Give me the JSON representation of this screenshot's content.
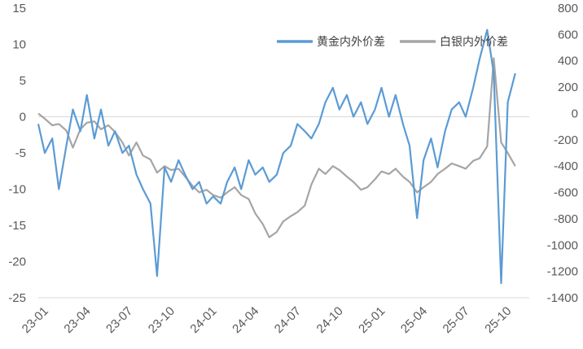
{
  "chart_data": {
    "type": "line",
    "title": "",
    "xlabel": "",
    "ylabel": "",
    "y2label": "",
    "x_ticks": [
      "23-01",
      "23-04",
      "23-07",
      "23-10",
      "24-01",
      "24-04",
      "24-07",
      "24-10",
      "25-01",
      "25-04",
      "25-07",
      "25-10"
    ],
    "ylim": [
      -25,
      15
    ],
    "y_ticks": [
      15,
      10,
      5,
      0,
      -5,
      -10,
      -15,
      -20,
      -25
    ],
    "y2lim": [
      -1400,
      800
    ],
    "y2_ticks": [
      800,
      600,
      400,
      200,
      0,
      -200,
      -400,
      -600,
      -800,
      -1000,
      -1200,
      -1400
    ],
    "legend_position": "top-right",
    "grid": false,
    "zero_line": true,
    "series": [
      {
        "name": "黄金内外价差",
        "axis": "left",
        "color": "#5B9BD5",
        "points": [
          [
            "23-01",
            -1
          ],
          [
            "23-01-15",
            -5
          ],
          [
            "23-02",
            -3
          ],
          [
            "23-02-15",
            -10
          ],
          [
            "23-03",
            -4
          ],
          [
            "23-03-15",
            1
          ],
          [
            "23-04",
            -2
          ],
          [
            "23-04-15",
            3
          ],
          [
            "23-05",
            -3
          ],
          [
            "23-05-15",
            1
          ],
          [
            "23-06",
            -4
          ],
          [
            "23-06-15",
            -2
          ],
          [
            "23-07",
            -5
          ],
          [
            "23-07-15",
            -4
          ],
          [
            "23-08",
            -8
          ],
          [
            "23-08-15",
            -10
          ],
          [
            "23-09",
            -12
          ],
          [
            "23-09-15",
            -22
          ],
          [
            "23-10",
            -7
          ],
          [
            "23-10-15",
            -9
          ],
          [
            "23-11",
            -6
          ],
          [
            "23-11-15",
            -8
          ],
          [
            "23-12",
            -10
          ],
          [
            "23-12-15",
            -9
          ],
          [
            "24-01",
            -12
          ],
          [
            "24-01-15",
            -11
          ],
          [
            "24-02",
            -12
          ],
          [
            "24-02-15",
            -9
          ],
          [
            "24-03",
            -7
          ],
          [
            "24-03-15",
            -10
          ],
          [
            "24-04",
            -6
          ],
          [
            "24-04-15",
            -8
          ],
          [
            "24-05",
            -7
          ],
          [
            "24-05-15",
            -9
          ],
          [
            "24-06",
            -8
          ],
          [
            "24-06-15",
            -5
          ],
          [
            "24-07",
            -4
          ],
          [
            "24-07-15",
            -1
          ],
          [
            "24-08",
            -2
          ],
          [
            "24-08-15",
            -3
          ],
          [
            "24-09",
            -1
          ],
          [
            "24-09-15",
            2
          ],
          [
            "24-10",
            4
          ],
          [
            "24-10-15",
            1
          ],
          [
            "24-11",
            3
          ],
          [
            "24-11-15",
            0
          ],
          [
            "24-12",
            2
          ],
          [
            "24-12-15",
            -1
          ],
          [
            "25-01",
            1
          ],
          [
            "25-01-15",
            4
          ],
          [
            "25-02",
            0
          ],
          [
            "25-02-15",
            3
          ],
          [
            "25-03",
            -1
          ],
          [
            "25-03-15",
            -4
          ],
          [
            "25-04",
            -14
          ],
          [
            "25-04-15",
            -6
          ],
          [
            "25-05",
            -3
          ],
          [
            "25-05-15",
            -7
          ],
          [
            "25-06",
            -2
          ],
          [
            "25-06-15",
            1
          ],
          [
            "25-07",
            2
          ],
          [
            "25-07-15",
            0
          ],
          [
            "25-08",
            4
          ],
          [
            "25-08-15",
            8
          ],
          [
            "25-09",
            12
          ],
          [
            "25-09-15",
            6
          ],
          [
            "25-10",
            -23
          ],
          [
            "25-10-15",
            2
          ],
          [
            "25-11",
            6
          ]
        ]
      },
      {
        "name": "白银内外价差",
        "axis": "right",
        "color": "#A5A5A5",
        "points": [
          [
            "23-01",
            0
          ],
          [
            "23-01-15",
            -40
          ],
          [
            "23-02",
            -90
          ],
          [
            "23-02-15",
            -80
          ],
          [
            "23-03",
            -130
          ],
          [
            "23-03-15",
            -260
          ],
          [
            "23-04",
            -120
          ],
          [
            "23-04-15",
            -70
          ],
          [
            "23-05",
            -60
          ],
          [
            "23-05-15",
            -120
          ],
          [
            "23-06",
            -90
          ],
          [
            "23-06-15",
            -140
          ],
          [
            "23-07",
            -220
          ],
          [
            "23-07-15",
            -320
          ],
          [
            "23-08",
            -220
          ],
          [
            "23-08-15",
            -320
          ],
          [
            "23-09",
            -350
          ],
          [
            "23-09-15",
            -450
          ],
          [
            "23-10",
            -400
          ],
          [
            "23-10-15",
            -430
          ],
          [
            "23-11",
            -420
          ],
          [
            "23-11-15",
            -480
          ],
          [
            "23-12",
            -550
          ],
          [
            "23-12-15",
            -600
          ],
          [
            "24-01",
            -580
          ],
          [
            "24-01-15",
            -620
          ],
          [
            "24-02",
            -640
          ],
          [
            "24-02-15",
            -600
          ],
          [
            "24-03",
            -560
          ],
          [
            "24-03-15",
            -620
          ],
          [
            "24-04",
            -650
          ],
          [
            "24-04-15",
            -760
          ],
          [
            "24-05",
            -840
          ],
          [
            "24-05-15",
            -940
          ],
          [
            "24-06",
            -900
          ],
          [
            "24-06-15",
            -820
          ],
          [
            "24-07",
            -780
          ],
          [
            "24-07-15",
            -750
          ],
          [
            "24-08",
            -700
          ],
          [
            "24-08-15",
            -540
          ],
          [
            "24-09",
            -420
          ],
          [
            "24-09-15",
            -460
          ],
          [
            "24-10",
            -400
          ],
          [
            "24-10-15",
            -430
          ],
          [
            "24-11",
            -480
          ],
          [
            "24-11-15",
            -520
          ],
          [
            "24-12",
            -580
          ],
          [
            "24-12-15",
            -560
          ],
          [
            "25-01",
            -500
          ],
          [
            "25-01-15",
            -440
          ],
          [
            "25-02",
            -460
          ],
          [
            "25-02-15",
            -420
          ],
          [
            "25-03",
            -480
          ],
          [
            "25-03-15",
            -520
          ],
          [
            "25-04",
            -600
          ],
          [
            "25-04-15",
            -560
          ],
          [
            "25-05",
            -520
          ],
          [
            "25-05-15",
            -460
          ],
          [
            "25-06",
            -420
          ],
          [
            "25-06-15",
            -380
          ],
          [
            "25-07",
            -400
          ],
          [
            "25-07-15",
            -420
          ],
          [
            "25-08",
            -360
          ],
          [
            "25-08-15",
            -340
          ],
          [
            "25-09",
            -250
          ],
          [
            "25-09-15",
            420
          ],
          [
            "25-10",
            -220
          ],
          [
            "25-10-15",
            -300
          ],
          [
            "25-11",
            -400
          ]
        ]
      }
    ]
  }
}
